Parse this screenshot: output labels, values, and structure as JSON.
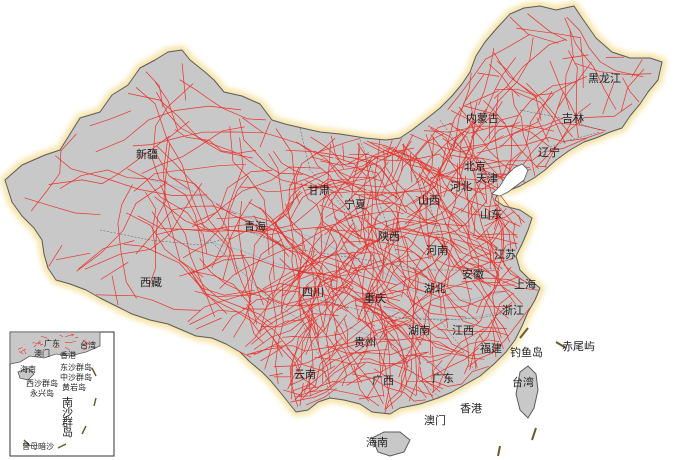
{
  "colors": {
    "land": "#c8c8c8",
    "border": "#5a5a5a",
    "glow": "#f6e3a6",
    "road": "#e8322a",
    "water": "#9fb3cf",
    "text": "#222222",
    "inset_border": "#333333",
    "sea_line": "#6b5a2a"
  },
  "provinces": [
    {
      "name": "黑龙江"
    },
    {
      "name": "吉林"
    },
    {
      "name": "内蒙古"
    },
    {
      "name": "辽宁"
    },
    {
      "name": "北京"
    },
    {
      "name": "天津"
    },
    {
      "name": "河北"
    },
    {
      "name": "新疆"
    },
    {
      "name": "甘肃"
    },
    {
      "name": "宁夏"
    },
    {
      "name": "山西"
    },
    {
      "name": "山东"
    },
    {
      "name": "青海"
    },
    {
      "name": "陕西"
    },
    {
      "name": "河南"
    },
    {
      "name": "江苏"
    },
    {
      "name": "西藏"
    },
    {
      "name": "四川"
    },
    {
      "name": "安徽"
    },
    {
      "name": "湖北"
    },
    {
      "name": "上海"
    },
    {
      "name": "重庆"
    },
    {
      "name": "浙江"
    },
    {
      "name": "湖南"
    },
    {
      "name": "江西"
    },
    {
      "name": "贵州"
    },
    {
      "name": "福建"
    },
    {
      "name": "钓鱼岛"
    },
    {
      "name": "赤尾屿"
    },
    {
      "name": "云南"
    },
    {
      "name": "广西"
    },
    {
      "name": "广东"
    },
    {
      "name": "台湾"
    },
    {
      "name": "香港"
    },
    {
      "name": "澳门"
    },
    {
      "name": "海南"
    }
  ],
  "inset": {
    "labels": [
      {
        "name": "广东"
      },
      {
        "name": "台湾"
      },
      {
        "name": "香港"
      },
      {
        "name": "澳门"
      },
      {
        "name": "海南"
      },
      {
        "name": "东沙群岛"
      },
      {
        "name": "中沙群岛"
      },
      {
        "name": "西沙群岛"
      },
      {
        "name": "黄岩岛"
      },
      {
        "name": "永兴岛"
      },
      {
        "name": "南"
      },
      {
        "name": "沙"
      },
      {
        "name": "群"
      },
      {
        "name": "岛"
      },
      {
        "name": "曾母暗沙"
      }
    ]
  }
}
